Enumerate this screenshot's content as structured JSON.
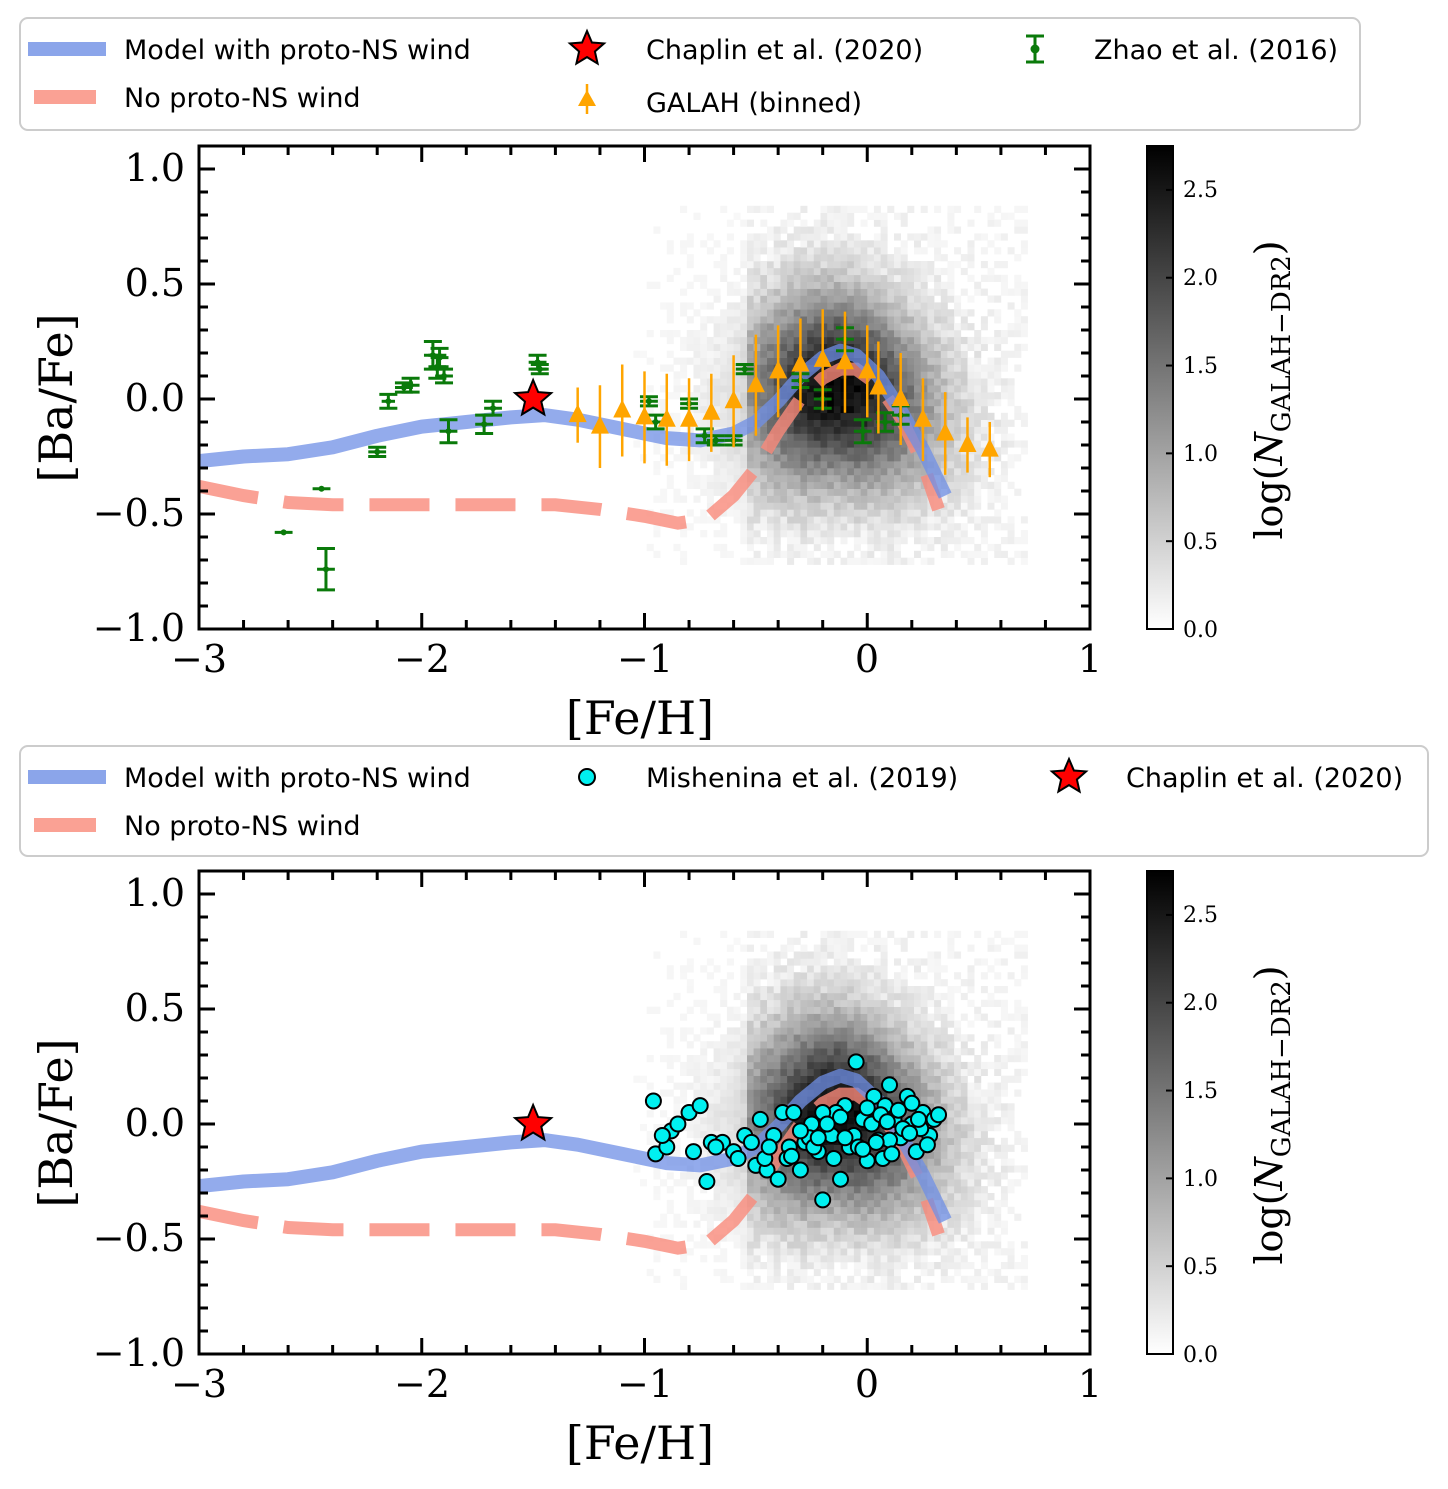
{
  "chart_data": [
    {
      "type": "scatter",
      "panel": "top",
      "xlabel": "[Fe/H]",
      "ylabel": "[Ba/Fe]",
      "xlim": [
        -3,
        1
      ],
      "ylim": [
        -1.0,
        1.1
      ],
      "xticks": [
        -3,
        -2,
        -1,
        0,
        1
      ],
      "xtick_labels": [
        "−3",
        "−2",
        "−1",
        "0",
        "1"
      ],
      "yticks": [
        -1.0,
        -0.5,
        0.0,
        0.5,
        1.0
      ],
      "ytick_labels": [
        "−1.0",
        "−0.5",
        "0.0",
        "0.5",
        "1.0"
      ],
      "legend": {
        "placement": "above",
        "entries": [
          {
            "label": "Model with proto-NS wind",
            "kind": "band",
            "color": "#6f8fe6"
          },
          {
            "label": "Chaplin et al. (2020)",
            "kind": "star",
            "color": "#ff0000"
          },
          {
            "label": "Zhao et al. (2016)",
            "kind": "errorbar",
            "color": "#0a7a0a"
          },
          {
            "label": "No proto-NS wind",
            "kind": "dashed",
            "color": "#f98a7a"
          },
          {
            "label": "GALAH (binned)",
            "kind": "triangle",
            "color": "#ffa500"
          }
        ]
      },
      "colorbar": {
        "label_prefix": "log(",
        "label_var": "N",
        "label_sub": "GALAH−DR2",
        "label_suffix": ")",
        "range": [
          0.0,
          2.75
        ],
        "ticks": [
          0.0,
          0.5,
          1.0,
          1.5,
          2.0,
          2.5
        ],
        "tick_labels": [
          "0.0",
          "0.5",
          "1.0",
          "1.5",
          "2.0",
          "2.5"
        ]
      },
      "model_with_wind": {
        "x": [
          -3.0,
          -2.8,
          -2.6,
          -2.4,
          -2.2,
          -2.0,
          -1.8,
          -1.6,
          -1.45,
          -1.3,
          -1.1,
          -0.9,
          -0.75,
          -0.6,
          -0.5,
          -0.4,
          -0.3,
          -0.2,
          -0.12,
          -0.05,
          0.05,
          0.15,
          0.25,
          0.35
        ],
        "y": [
          -0.27,
          -0.25,
          -0.24,
          -0.21,
          -0.16,
          -0.12,
          -0.1,
          -0.08,
          -0.07,
          -0.09,
          -0.13,
          -0.17,
          -0.18,
          -0.15,
          -0.1,
          -0.01,
          0.1,
          0.18,
          0.21,
          0.19,
          0.1,
          -0.05,
          -0.22,
          -0.42
        ]
      },
      "model_no_wind": {
        "x": [
          -3.0,
          -2.8,
          -2.6,
          -2.4,
          -2.2,
          -2.0,
          -1.8,
          -1.6,
          -1.4,
          -1.2,
          -1.0,
          -0.85,
          -0.72,
          -0.6,
          -0.5,
          -0.4,
          -0.3,
          -0.2,
          -0.12,
          -0.05,
          0.05,
          0.15,
          0.25,
          0.32
        ],
        "y": [
          -0.38,
          -0.42,
          -0.45,
          -0.46,
          -0.46,
          -0.46,
          -0.46,
          -0.46,
          -0.46,
          -0.48,
          -0.51,
          -0.54,
          -0.52,
          -0.42,
          -0.3,
          -0.14,
          0.0,
          0.09,
          0.13,
          0.13,
          0.06,
          -0.08,
          -0.28,
          -0.48
        ]
      },
      "chaplin": {
        "x": -1.5,
        "y": 0.0
      },
      "zhao": {
        "x": [
          -2.62,
          -2.45,
          -2.43,
          -2.2,
          -2.15,
          -2.08,
          -2.05,
          -1.95,
          -1.93,
          -1.92,
          -1.9,
          -1.88,
          -1.72,
          -1.68,
          -1.48,
          -1.47,
          -0.98,
          -0.95,
          -0.8,
          -0.73,
          -0.68,
          -0.6,
          -0.55,
          -0.3,
          -0.2,
          -0.1,
          -0.02,
          0.08,
          0.15
        ],
        "y": [
          -0.58,
          -0.39,
          -0.74,
          -0.23,
          -0.01,
          0.05,
          0.06,
          0.19,
          0.14,
          0.18,
          0.1,
          -0.14,
          -0.11,
          -0.04,
          0.16,
          0.13,
          -0.01,
          -0.1,
          -0.02,
          -0.16,
          -0.18,
          -0.18,
          0.13,
          0.08,
          0.0,
          0.26,
          -0.14,
          -0.1,
          -0.07
        ],
        "yerr": [
          0.0,
          0.0,
          0.09,
          0.02,
          0.03,
          0.02,
          0.03,
          0.06,
          0.05,
          0.04,
          0.03,
          0.05,
          0.04,
          0.03,
          0.03,
          0.02,
          0.02,
          0.03,
          0.02,
          0.03,
          0.02,
          0.02,
          0.02,
          0.03,
          0.04,
          0.05,
          0.05,
          0.04,
          0.04
        ],
        "xerr": [
          0.04,
          0.04,
          0.04,
          0.04,
          0.03,
          0.04,
          0.04,
          0.04,
          0.04,
          0.04,
          0.04,
          0.04,
          0.04,
          0.04,
          0.04,
          0.04,
          0.04,
          0.04,
          0.04,
          0.04,
          0.04,
          0.04,
          0.04,
          0.04,
          0.04,
          0.04,
          0.04,
          0.04,
          0.04
        ]
      },
      "galah_binned": {
        "x": [
          -1.3,
          -1.2,
          -1.1,
          -1.0,
          -0.9,
          -0.8,
          -0.7,
          -0.6,
          -0.5,
          -0.4,
          -0.3,
          -0.2,
          -0.1,
          0.0,
          0.05,
          0.15,
          0.25,
          0.35,
          0.45,
          0.55
        ],
        "y": [
          -0.07,
          -0.12,
          -0.05,
          -0.08,
          -0.09,
          -0.09,
          -0.06,
          -0.01,
          0.06,
          0.12,
          0.15,
          0.17,
          0.16,
          0.12,
          0.05,
          0.0,
          -0.09,
          -0.15,
          -0.2,
          -0.22
        ],
        "yerr": [
          0.12,
          0.18,
          0.2,
          0.2,
          0.2,
          0.18,
          0.17,
          0.2,
          0.22,
          0.2,
          0.2,
          0.22,
          0.22,
          0.2,
          0.2,
          0.2,
          0.18,
          0.18,
          0.12,
          0.12
        ]
      },
      "galah_density": {
        "center_x": -0.15,
        "center_y": 0.0,
        "peak": 2.7
      }
    },
    {
      "type": "scatter",
      "panel": "bottom",
      "xlabel": "[Fe/H]",
      "ylabel": "[Ba/Fe]",
      "xlim": [
        -3,
        1
      ],
      "ylim": [
        -1.0,
        1.1
      ],
      "xticks": [
        -3,
        -2,
        -1,
        0,
        1
      ],
      "xtick_labels": [
        "−3",
        "−2",
        "−1",
        "0",
        "1"
      ],
      "yticks": [
        -1.0,
        -0.5,
        0.0,
        0.5,
        1.0
      ],
      "ytick_labels": [
        "−1.0",
        "−0.5",
        "0.0",
        "0.5",
        "1.0"
      ],
      "legend": {
        "placement": "above",
        "entries": [
          {
            "label": "Model with proto-NS wind",
            "kind": "band",
            "color": "#6f8fe6"
          },
          {
            "label": "Mishenina et al. (2019)",
            "kind": "circle",
            "color": "#00f0f0"
          },
          {
            "label": "Chaplin et al. (2020)",
            "kind": "star",
            "color": "#ff0000"
          },
          {
            "label": "No proto-NS wind",
            "kind": "dashed",
            "color": "#f98a7a"
          }
        ]
      },
      "colorbar": {
        "label_prefix": "log(",
        "label_var": "N",
        "label_sub": "GALAH−DR2",
        "label_suffix": ")",
        "range": [
          0.0,
          2.75
        ],
        "ticks": [
          0.0,
          0.5,
          1.0,
          1.5,
          2.0,
          2.5
        ],
        "tick_labels": [
          "0.0",
          "0.5",
          "1.0",
          "1.5",
          "2.0",
          "2.5"
        ]
      },
      "model_with_wind": {
        "x": [
          -3.0,
          -2.8,
          -2.6,
          -2.4,
          -2.2,
          -2.0,
          -1.8,
          -1.6,
          -1.45,
          -1.3,
          -1.1,
          -0.9,
          -0.75,
          -0.6,
          -0.5,
          -0.4,
          -0.3,
          -0.2,
          -0.12,
          -0.05,
          0.05,
          0.15,
          0.25,
          0.35
        ],
        "y": [
          -0.27,
          -0.25,
          -0.24,
          -0.21,
          -0.16,
          -0.12,
          -0.1,
          -0.08,
          -0.07,
          -0.09,
          -0.13,
          -0.17,
          -0.18,
          -0.15,
          -0.1,
          -0.01,
          0.1,
          0.18,
          0.21,
          0.19,
          0.1,
          -0.05,
          -0.22,
          -0.42
        ]
      },
      "model_no_wind": {
        "x": [
          -3.0,
          -2.8,
          -2.6,
          -2.4,
          -2.2,
          -2.0,
          -1.8,
          -1.6,
          -1.4,
          -1.2,
          -1.0,
          -0.85,
          -0.72,
          -0.6,
          -0.5,
          -0.4,
          -0.3,
          -0.2,
          -0.12,
          -0.05,
          0.05,
          0.15,
          0.25,
          0.32
        ],
        "y": [
          -0.38,
          -0.42,
          -0.45,
          -0.46,
          -0.46,
          -0.46,
          -0.46,
          -0.46,
          -0.46,
          -0.48,
          -0.51,
          -0.54,
          -0.52,
          -0.42,
          -0.3,
          -0.14,
          0.0,
          0.09,
          0.13,
          0.13,
          0.06,
          -0.08,
          -0.28,
          -0.48
        ]
      },
      "chaplin": {
        "x": -1.5,
        "y": 0.0
      },
      "mishenina": {
        "x": [
          -0.95,
          -0.9,
          -0.88,
          -0.85,
          -0.8,
          -0.75,
          -0.72,
          -0.7,
          -0.65,
          -0.6,
          -0.58,
          -0.55,
          -0.5,
          -0.48,
          -0.45,
          -0.42,
          -0.4,
          -0.38,
          -0.35,
          -0.33,
          -0.3,
          -0.28,
          -0.25,
          -0.22,
          -0.2,
          -0.18,
          -0.15,
          -0.12,
          -0.1,
          -0.08,
          -0.05,
          -0.02,
          0.0,
          0.03,
          0.05,
          0.08,
          0.1,
          0.12,
          0.15,
          0.18,
          0.2,
          0.22,
          0.25,
          0.28,
          0.3,
          0.32,
          -0.96,
          -0.92,
          -0.78,
          -0.68,
          -0.52,
          -0.46,
          -0.36,
          -0.26,
          -0.16,
          -0.06,
          0.02,
          0.07,
          0.14,
          0.24,
          -0.24,
          -0.14,
          -0.04,
          0.06,
          0.16,
          -0.3,
          -0.2,
          -0.1,
          0.0,
          0.1,
          0.2,
          -0.34,
          -0.22,
          -0.12,
          -0.02,
          0.09,
          0.19,
          0.27,
          -0.44,
          -0.18,
          0.04,
          0.11,
          0.23
        ],
        "y": [
          -0.13,
          -0.1,
          -0.03,
          0.0,
          0.05,
          0.08,
          -0.25,
          -0.08,
          -0.08,
          -0.12,
          -0.15,
          -0.05,
          -0.18,
          0.02,
          -0.2,
          -0.05,
          -0.24,
          0.05,
          -0.1,
          0.05,
          -0.2,
          -0.08,
          0.0,
          -0.12,
          -0.33,
          0.02,
          -0.15,
          -0.24,
          0.08,
          -0.1,
          0.27,
          0.02,
          -0.16,
          0.12,
          -0.07,
          0.08,
          0.17,
          0.02,
          -0.06,
          0.12,
          0.0,
          -0.12,
          0.05,
          -0.05,
          0.02,
          0.04,
          0.1,
          -0.05,
          -0.12,
          -0.1,
          -0.08,
          -0.15,
          -0.15,
          -0.06,
          -0.05,
          -0.05,
          0.0,
          -0.15,
          0.06,
          -0.02,
          -0.1,
          0.05,
          -0.1,
          0.04,
          -0.02,
          -0.03,
          0.05,
          -0.06,
          0.07,
          -0.07,
          0.09,
          -0.14,
          -0.06,
          0.03,
          -0.11,
          0.01,
          -0.04,
          -0.09,
          -0.1,
          0.0,
          -0.08,
          -0.13,
          0.02
        ]
      },
      "galah_density": {
        "center_x": -0.15,
        "center_y": 0.0,
        "peak": 2.7
      }
    }
  ]
}
